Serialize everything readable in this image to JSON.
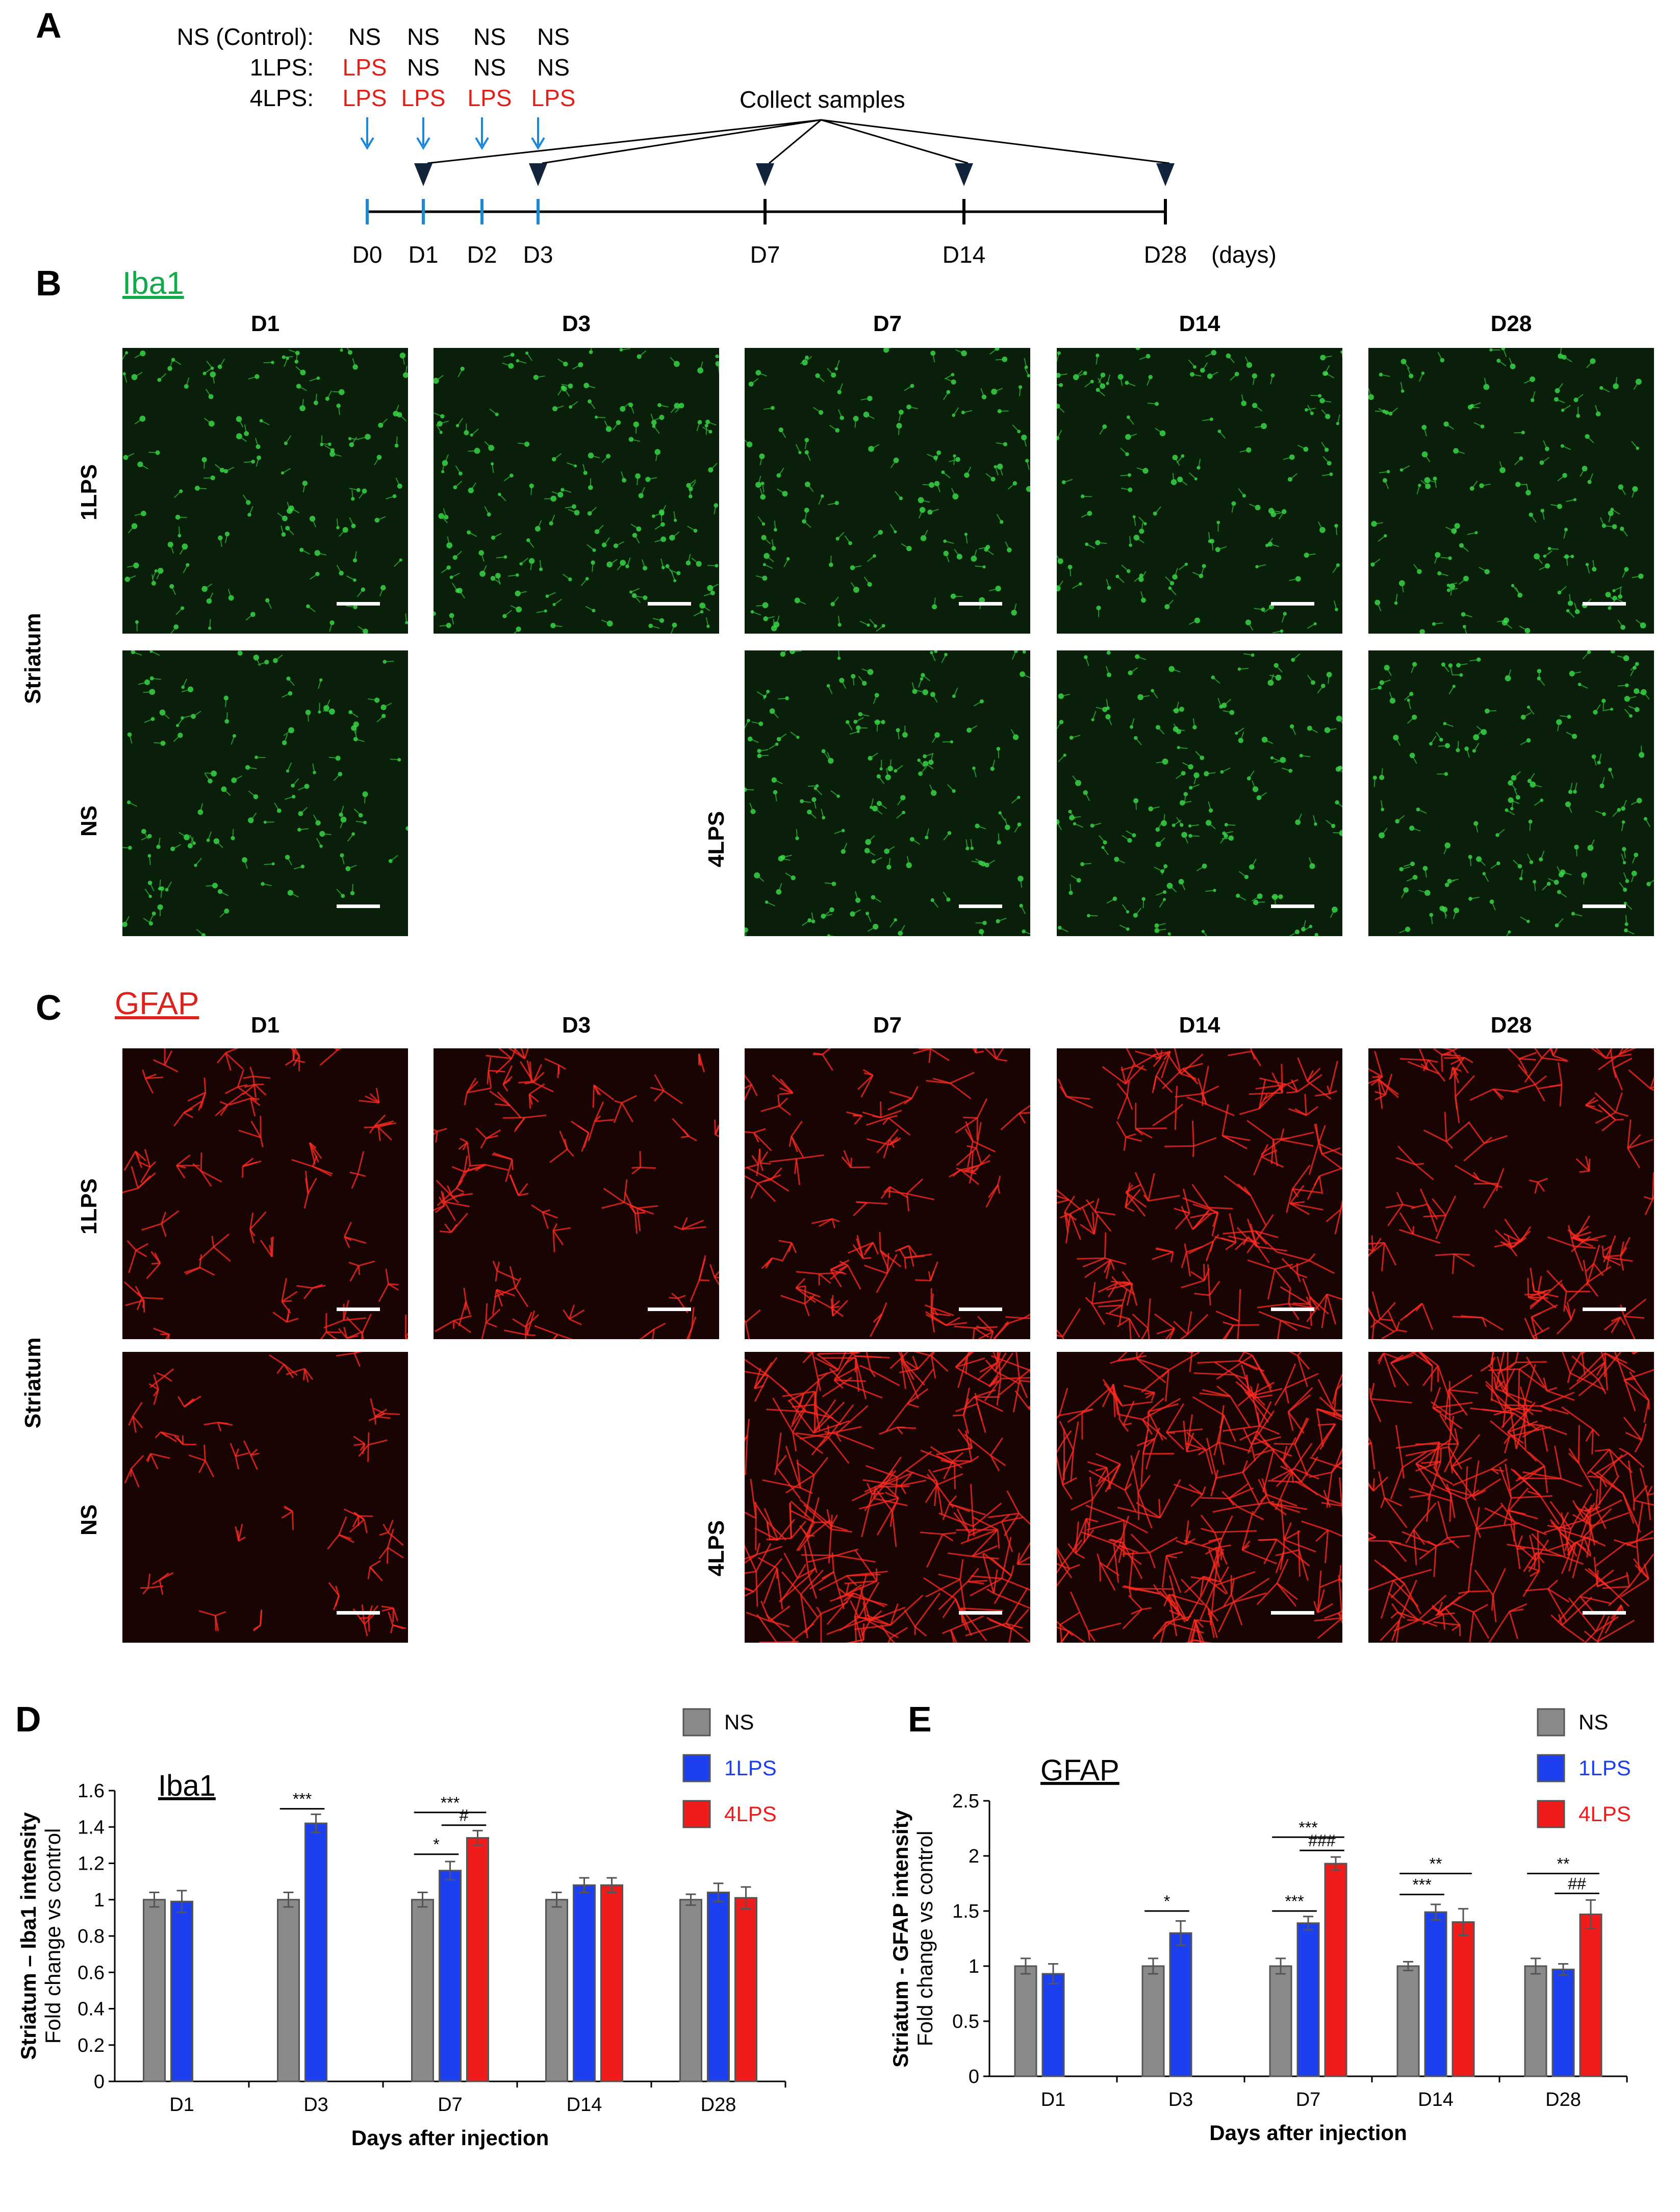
{
  "panel_labels": {
    "a": "A",
    "b": "B",
    "c": "C",
    "d": "D",
    "e": "E"
  },
  "schedule": {
    "rows": [
      {
        "label": "NS (Control):",
        "cells": [
          "NS",
          "NS",
          "NS",
          "NS"
        ]
      },
      {
        "label": "1LPS:",
        "cells": [
          "LPS",
          "NS",
          "NS",
          "NS"
        ]
      },
      {
        "label": "4LPS:",
        "cells": [
          "LPS",
          "LPS",
          "LPS",
          "LPS"
        ]
      }
    ],
    "collect_label": "Collect samples",
    "timeline_ticks": [
      "D0",
      "D1",
      "D2",
      "D3",
      "D7",
      "D14",
      "D28"
    ],
    "unit": "(days)",
    "lps_color": "#e0201b",
    "arrow_color": "#1e88d8"
  },
  "panel_b": {
    "stain_label": "Iba1",
    "stain_color": "#13a84a",
    "columns": [
      "D1",
      "D3",
      "D7",
      "D14",
      "D28"
    ],
    "region": "Striatum",
    "row_1lps": "1LPS",
    "row_ns": "NS",
    "row_4lps": "4LPS"
  },
  "panel_c": {
    "stain_label": "GFAP",
    "stain_color": "#e0201b",
    "columns": [
      "D1",
      "D3",
      "D7",
      "D14",
      "D28"
    ],
    "region": "Striatum",
    "row_1lps": "1LPS",
    "row_ns": "NS",
    "row_4lps": "4LPS"
  },
  "chart_data": [
    {
      "type": "bar",
      "title": "Iba1",
      "xlabel": "Days after injection",
      "ylabel_line1": "Striatum – Iba1 intensity",
      "ylabel_line2": "Fold change vs  control",
      "categories": [
        "D1",
        "D3",
        "D7",
        "D14",
        "D28"
      ],
      "ylim": [
        0,
        1.6
      ],
      "yticks": [
        "0",
        "0.2",
        "0.4",
        "0.6",
        "0.8",
        "1",
        "1.2",
        "1.4",
        "1.6"
      ],
      "series": [
        {
          "name": "NS",
          "color": "#8a8a8a",
          "values": [
            1.0,
            1.0,
            1.0,
            1.0,
            1.0
          ],
          "errors": [
            0.04,
            0.04,
            0.04,
            0.04,
            0.03
          ]
        },
        {
          "name": "1LPS",
          "color": "#1c3ff0",
          "values": [
            0.99,
            1.42,
            1.16,
            1.08,
            1.04
          ],
          "errors": [
            0.06,
            0.05,
            0.05,
            0.04,
            0.05
          ]
        },
        {
          "name": "4LPS",
          "color": "#f01c1c",
          "values": [
            null,
            null,
            1.34,
            1.08,
            1.01
          ],
          "errors": [
            null,
            null,
            0.04,
            0.04,
            0.06
          ]
        }
      ],
      "annotations": [
        {
          "text": "***",
          "category": "D3",
          "from": 0,
          "to": 1,
          "y": 1.5
        },
        {
          "text": "***",
          "category": "D7",
          "from": 0,
          "to": 2,
          "y": 1.48
        },
        {
          "text": "*",
          "category": "D7",
          "from": 0,
          "to": 1,
          "y": 1.25
        },
        {
          "text": "#",
          "category": "D7",
          "from": 1,
          "to": 2,
          "y": 1.41
        }
      ]
    },
    {
      "type": "bar",
      "title": "GFAP",
      "xlabel": "Days after injection",
      "ylabel_line1": "Striatum - GFAP intensity",
      "ylabel_line2": "Fold change vs control",
      "categories": [
        "D1",
        "D3",
        "D7",
        "D14",
        "D28"
      ],
      "ylim": [
        0,
        2.5
      ],
      "yticks": [
        "0",
        "0.5",
        "1",
        "1.5",
        "2",
        "2.5"
      ],
      "series": [
        {
          "name": "NS",
          "color": "#8a8a8a",
          "values": [
            1.0,
            1.0,
            1.0,
            1.0,
            1.0
          ],
          "errors": [
            0.07,
            0.07,
            0.07,
            0.04,
            0.07
          ]
        },
        {
          "name": "1LPS",
          "color": "#1c3ff0",
          "values": [
            0.93,
            1.3,
            1.39,
            1.49,
            0.97
          ],
          "errors": [
            0.09,
            0.11,
            0.06,
            0.07,
            0.05
          ]
        },
        {
          "name": "4LPS",
          "color": "#f01c1c",
          "values": [
            null,
            null,
            1.93,
            1.4,
            1.47
          ],
          "errors": [
            null,
            null,
            0.06,
            0.12,
            0.13
          ]
        }
      ],
      "annotations": [
        {
          "text": "*",
          "category": "D3",
          "from": 0,
          "to": 1,
          "y": 1.5
        },
        {
          "text": "***",
          "category": "D7",
          "from": 0,
          "to": 2,
          "y": 2.17
        },
        {
          "text": "###",
          "category": "D7",
          "from": 1,
          "to": 2,
          "y": 2.05
        },
        {
          "text": "***",
          "category": "D7",
          "from": 0,
          "to": 1,
          "y": 1.5
        },
        {
          "text": "**",
          "category": "D14",
          "from": 0,
          "to": 2,
          "y": 1.84
        },
        {
          "text": "***",
          "category": "D14",
          "from": 0,
          "to": 1,
          "y": 1.65
        },
        {
          "text": "**",
          "category": "D28",
          "from": 0,
          "to": 2,
          "y": 1.84
        },
        {
          "text": "##",
          "category": "D28",
          "from": 1,
          "to": 2,
          "y": 1.66
        }
      ]
    }
  ]
}
